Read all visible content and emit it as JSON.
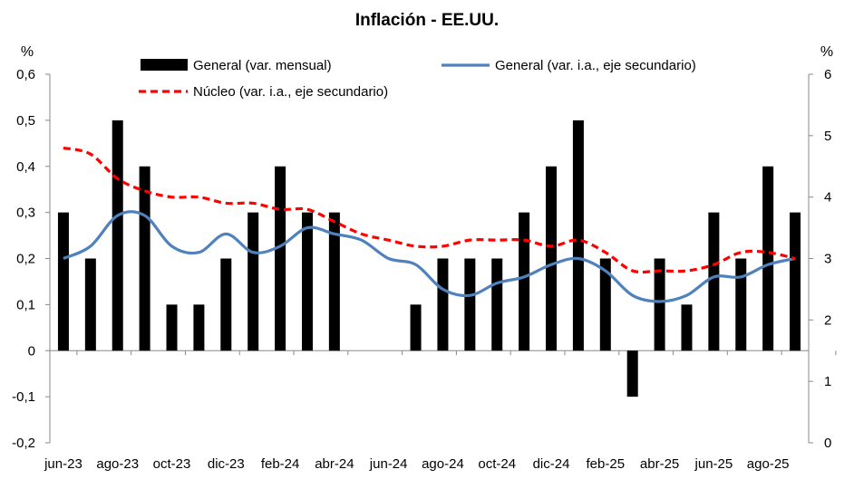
{
  "chart_data": {
    "type": "bar+line",
    "title": "Inflación - EE.UU.",
    "ylabel_left": "%",
    "ylabel_right": "%",
    "ylim_left": [
      -0.2,
      0.6
    ],
    "yticks_left": [
      "-0,2",
      "-0,1",
      "0",
      "0,1",
      "0,2",
      "0,3",
      "0,4",
      "0,5",
      "0,6"
    ],
    "ylim_right": [
      0,
      6
    ],
    "yticks_right": [
      "0",
      "1",
      "2",
      "3",
      "4",
      "5",
      "6"
    ],
    "categories": [
      "jun-23",
      "jul-23",
      "ago-23",
      "sep-23",
      "oct-23",
      "nov-23",
      "dic-23",
      "ene-24",
      "feb-24",
      "mar-24",
      "abr-24",
      "may-24",
      "jun-24",
      "jul-24",
      "ago-24",
      "sep-24",
      "oct-24",
      "nov-24",
      "dic-24",
      "ene-25",
      "feb-25",
      "mar-25",
      "abr-25",
      "may-25",
      "jun-25",
      "jul-25",
      "ago-25",
      "sep-25"
    ],
    "xtick_labels": [
      "jun-23",
      "ago-23",
      "oct-23",
      "dic-23",
      "feb-24",
      "abr-24",
      "jun-24",
      "ago-24",
      "oct-24",
      "dic-24",
      "feb-25",
      "abr-25",
      "jun-25",
      "ago-25"
    ],
    "series": [
      {
        "name": "General (var. mensual)",
        "type": "bar",
        "axis": "left",
        "color": "#000000",
        "values": [
          0.3,
          0.2,
          0.5,
          0.4,
          0.1,
          0.1,
          0.2,
          0.3,
          0.4,
          0.3,
          0.3,
          0,
          0,
          0.1,
          0.2,
          0.2,
          0.2,
          0.3,
          0.4,
          0.5,
          0.2,
          -0.1,
          0.2,
          0.1,
          0.3,
          0.2,
          0.4,
          0.3
        ]
      },
      {
        "name": "General (var. i.a., eje secundario)",
        "type": "line",
        "axis": "right",
        "color": "#4F81BD",
        "values": [
          3.0,
          3.2,
          3.7,
          3.7,
          3.2,
          3.1,
          3.4,
          3.1,
          3.2,
          3.5,
          3.4,
          3.3,
          3.0,
          2.9,
          2.5,
          2.4,
          2.6,
          2.7,
          2.9,
          3.0,
          2.8,
          2.4,
          2.3,
          2.4,
          2.7,
          2.7,
          2.9,
          3.0
        ]
      },
      {
        "name": "Núcleo (var. i.a., eje secundario)",
        "type": "line",
        "axis": "right",
        "color": "#FF0000",
        "dashed": true,
        "values": [
          4.8,
          4.7,
          4.3,
          4.1,
          4.0,
          4.0,
          3.9,
          3.9,
          3.8,
          3.8,
          3.6,
          3.4,
          3.3,
          3.2,
          3.2,
          3.3,
          3.3,
          3.3,
          3.2,
          3.3,
          3.1,
          2.8,
          2.8,
          2.8,
          2.9,
          3.1,
          3.1,
          3.0
        ]
      }
    ],
    "legend": "top"
  }
}
